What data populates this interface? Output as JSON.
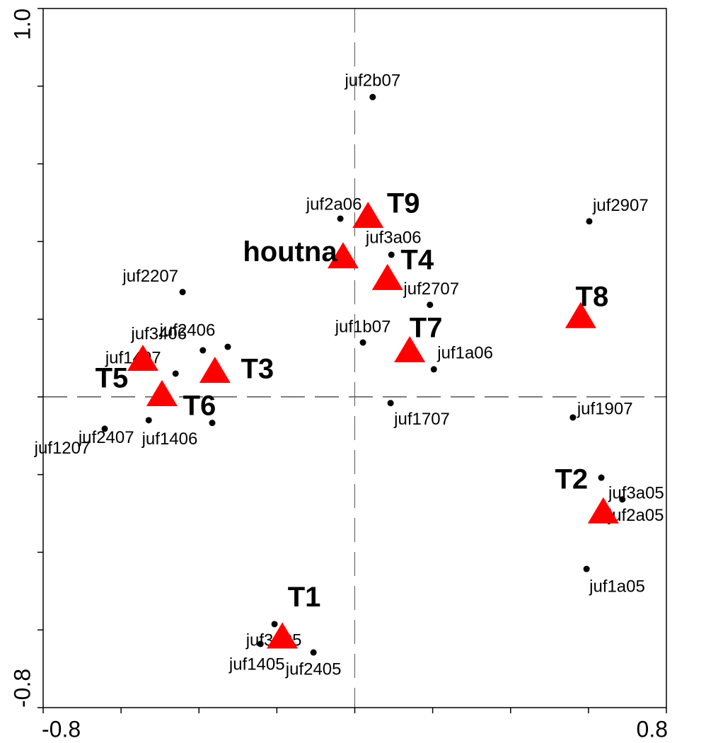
{
  "chart_data": {
    "type": "scatter",
    "xlim": [
      -0.8,
      0.8
    ],
    "ylim": [
      -0.8,
      1.0
    ],
    "xticks": [
      -0.8,
      0.8
    ],
    "yticks": [
      -0.8,
      {
        "value": 1.0,
        "label": "1.0"
      }
    ],
    "xminorticks": [
      -0.6,
      -0.4,
      -0.2,
      0,
      0.2,
      0.4,
      0.6
    ],
    "yminorticks": [
      -0.6,
      -0.4,
      -0.2,
      0,
      0.2,
      0.4,
      0.6,
      0.8
    ],
    "series": [
      {
        "marker": "dot",
        "color": "#000000",
        "labels": [
          "juf2b07",
          "juf2a06",
          "juf3a06",
          "juf2907",
          "juf2207",
          "juf2707",
          "juf1b07",
          "juf2406",
          "juf3406",
          "juf1a06",
          "juf1407",
          "juf1707",
          "juf1907",
          "juf1207",
          "juf2407",
          "juf1406",
          "juf3a05",
          "juf2a05",
          "juf1a05",
          "juf3405",
          "juf1405",
          "juf2405"
        ],
        "x": [
          0.046,
          -0.037,
          0.094,
          0.602,
          -0.442,
          0.193,
          0.021,
          -0.326,
          -0.39,
          0.203,
          -0.46,
          0.092,
          0.56,
          -0.642,
          -0.529,
          -0.366,
          0.633,
          0.687,
          0.595,
          -0.206,
          -0.242,
          -0.106
        ],
        "y": [
          0.772,
          0.459,
          0.366,
          0.452,
          0.27,
          0.237,
          0.14,
          0.129,
          0.12,
          0.071,
          0.06,
          -0.016,
          -0.053,
          -0.082,
          -0.06,
          -0.067,
          -0.208,
          -0.264,
          -0.443,
          -0.585,
          -0.636,
          -0.658
        ]
      },
      {
        "marker": "triangle",
        "color": "#ff0000",
        "labels": [
          "T9",
          "houtna",
          "T4",
          "T8",
          "T7",
          "T5",
          "T3",
          "T6",
          "T2",
          "T1"
        ],
        "x": [
          0.034,
          -0.03,
          0.084,
          0.58,
          0.141,
          -0.544,
          -0.359,
          -0.495,
          0.638,
          -0.186
        ],
        "y": [
          0.466,
          0.362,
          0.306,
          0.208,
          0.12,
          0.098,
          0.067,
          0.007,
          -0.295,
          -0.617
        ]
      }
    ]
  }
}
